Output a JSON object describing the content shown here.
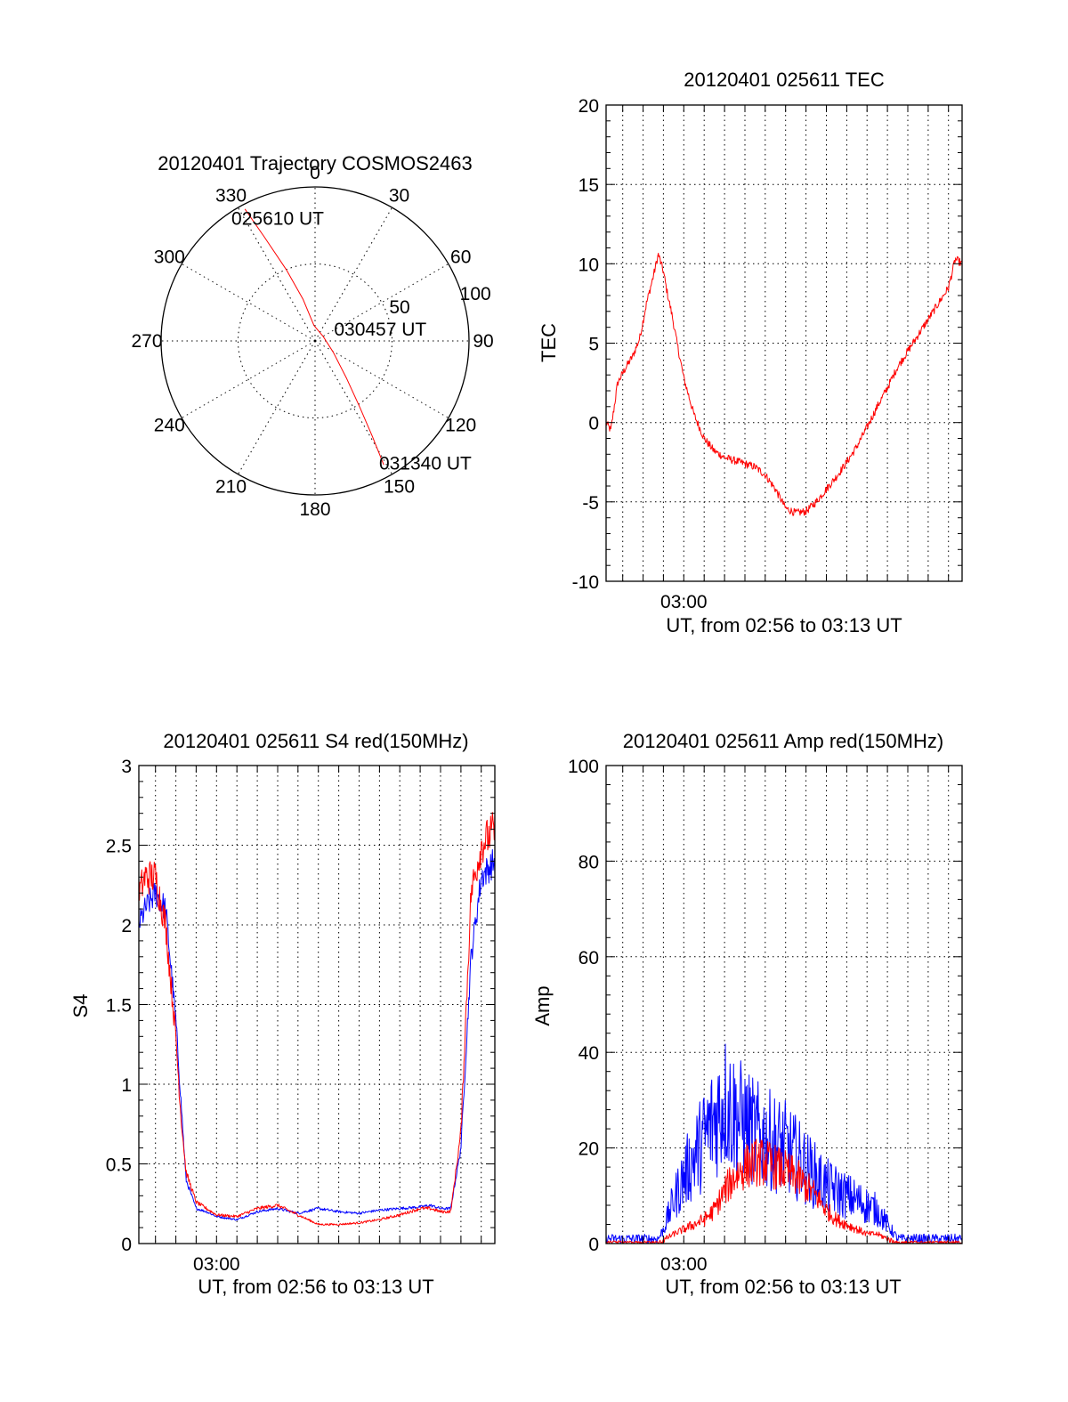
{
  "figure": {
    "background": "#ffffff"
  },
  "chart_data": [
    {
      "id": "polar",
      "type": "line",
      "coordinate_system": "polar",
      "title": "20120401 Trajectory COSMOS2463",
      "angle_labels": [
        "0",
        "30",
        "60",
        "90",
        "120",
        "150",
        "180",
        "210",
        "240",
        "270",
        "300",
        "330"
      ],
      "angle_values": [
        0,
        30,
        60,
        90,
        120,
        150,
        180,
        210,
        240,
        270,
        300,
        330
      ],
      "radius_labels": [
        "50",
        "100"
      ],
      "radius_values": [
        50,
        100
      ],
      "rlim": [
        0,
        100
      ],
      "grid": true,
      "series": [
        {
          "color": "#ff0000",
          "points": [
            {
              "az": 332,
              "r": 97
            },
            {
              "az": 334,
              "r": 75
            },
            {
              "az": 338,
              "r": 50
            },
            {
              "az": 344,
              "r": 28
            },
            {
              "az": 356,
              "r": 10
            },
            {
              "az": 60,
              "r": 6
            },
            {
              "az": 122,
              "r": 14
            },
            {
              "az": 140,
              "r": 32
            },
            {
              "az": 146,
              "r": 52
            },
            {
              "az": 149,
              "r": 72
            },
            {
              "az": 151,
              "r": 92
            }
          ]
        }
      ],
      "annotations": [
        {
          "text": "025610 UT",
          "az": 343,
          "r": 83
        },
        {
          "text": "030457 UT",
          "az": 80,
          "r": 43
        },
        {
          "text": "031340 UT",
          "az": 138,
          "r": 107
        }
      ]
    },
    {
      "id": "tec",
      "type": "line",
      "title": "20120401 025611 TEC",
      "xlabel": "UT, from 02:56 to 03:13 UT",
      "ylabel": "TEC",
      "xlim": [
        "02:56:11",
        "03:13:40"
      ],
      "ylim": [
        -10,
        20
      ],
      "yticks": [
        -10,
        -5,
        0,
        5,
        10,
        15,
        20
      ],
      "xtick_labels": [
        {
          "t": "03:00:00",
          "label": "03:00"
        }
      ],
      "grid": true,
      "series": [
        {
          "color": "#ff0000",
          "noise": 0.25,
          "x": [
            "02:56:11",
            "02:56:25",
            "02:56:45",
            "02:57:10",
            "02:57:30",
            "02:57:50",
            "02:58:10",
            "02:58:30",
            "02:58:45",
            "02:59:00",
            "02:59:10",
            "02:59:25",
            "02:59:40",
            "03:00:00",
            "03:00:30",
            "03:01:00",
            "03:01:30",
            "03:02:00",
            "03:02:30",
            "03:03:00",
            "03:03:30",
            "03:04:00",
            "03:04:30",
            "03:05:00",
            "03:05:30",
            "03:06:00",
            "03:06:30",
            "03:07:00",
            "03:07:30",
            "03:08:00",
            "03:08:30",
            "03:09:00",
            "03:09:30",
            "03:10:00",
            "03:10:30",
            "03:11:00",
            "03:11:30",
            "03:12:00",
            "03:12:30",
            "03:13:00",
            "03:13:20",
            "03:13:40"
          ],
          "y": [
            0,
            -0.5,
            2.5,
            3.5,
            4.2,
            5.3,
            7.5,
            9.2,
            10.6,
            9.5,
            8.3,
            6.8,
            5.0,
            2.8,
            0.5,
            -1.0,
            -1.8,
            -2.2,
            -2.4,
            -2.6,
            -2.8,
            -3.3,
            -4.2,
            -5.4,
            -5.7,
            -5.6,
            -5.0,
            -4.2,
            -3.4,
            -2.5,
            -1.5,
            -0.3,
            1.0,
            2.2,
            3.5,
            4.5,
            5.5,
            6.5,
            7.5,
            8.5,
            10.3,
            10.0
          ]
        }
      ]
    },
    {
      "id": "s4",
      "type": "line",
      "title": "20120401 025611 S4 red(150MHz)",
      "xlabel": "UT, from 02:56 to 03:13 UT",
      "ylabel": "S4",
      "xlim": [
        "02:56:11",
        "03:13:40"
      ],
      "ylim": [
        0,
        3
      ],
      "yticks": [
        0,
        0.5,
        1,
        1.5,
        2,
        2.5,
        3
      ],
      "ytick_labels": [
        "0",
        "0.5",
        "1",
        "1.5",
        "2",
        "2.5",
        "3"
      ],
      "xtick_labels": [
        {
          "t": "03:00:00",
          "label": "03:00"
        }
      ],
      "grid": true,
      "series": [
        {
          "color": "#0000ff",
          "noise": 0.04,
          "x": [
            "02:56:11",
            "02:56:30",
            "02:57:00",
            "02:57:30",
            "02:58:00",
            "02:58:15",
            "02:58:30",
            "02:59:00",
            "02:59:30",
            "03:00:00",
            "03:01:00",
            "03:02:00",
            "03:03:00",
            "03:04:00",
            "03:05:00",
            "03:06:00",
            "03:07:00",
            "03:08:00",
            "03:09:00",
            "03:10:00",
            "03:10:30",
            "03:11:00",
            "03:11:30",
            "03:12:00",
            "03:12:30",
            "03:13:00",
            "03:13:40"
          ],
          "y": [
            2.0,
            2.1,
            2.2,
            2.1,
            1.4,
            0.9,
            0.4,
            0.22,
            0.2,
            0.17,
            0.15,
            0.2,
            0.22,
            0.19,
            0.22,
            0.2,
            0.19,
            0.21,
            0.22,
            0.23,
            0.24,
            0.22,
            0.22,
            0.6,
            1.8,
            2.3,
            2.4
          ]
        },
        {
          "color": "#ff0000",
          "noise": 0.05,
          "x": [
            "02:56:11",
            "02:56:30",
            "02:57:00",
            "02:57:30",
            "02:58:00",
            "02:58:15",
            "02:58:30",
            "02:59:00",
            "02:59:30",
            "03:00:00",
            "03:01:00",
            "03:02:00",
            "03:03:00",
            "03:04:00",
            "03:05:00",
            "03:06:00",
            "03:07:00",
            "03:08:00",
            "03:09:00",
            "03:10:00",
            "03:10:30",
            "03:11:00",
            "03:11:30",
            "03:12:00",
            "03:12:30",
            "03:13:00",
            "03:13:40"
          ],
          "y": [
            2.2,
            2.3,
            2.3,
            2.0,
            1.3,
            0.8,
            0.45,
            0.26,
            0.22,
            0.18,
            0.17,
            0.22,
            0.24,
            0.18,
            0.12,
            0.12,
            0.13,
            0.15,
            0.18,
            0.22,
            0.22,
            0.2,
            0.2,
            0.7,
            2.2,
            2.5,
            2.6
          ]
        }
      ]
    },
    {
      "id": "amp",
      "type": "line",
      "title": "20120401 025611 Amp red(150MHz)",
      "xlabel": "UT, from 02:56 to 03:13 UT",
      "ylabel": "Amp",
      "xlim": [
        "02:56:11",
        "03:13:40"
      ],
      "ylim": [
        0,
        100
      ],
      "yticks": [
        0,
        20,
        40,
        60,
        80,
        100
      ],
      "xtick_labels": [
        {
          "t": "03:00:00",
          "label": "03:00"
        }
      ],
      "grid": true,
      "series": [
        {
          "color": "#0000ff",
          "noise": 0.5,
          "x": [
            "02:56:11",
            "02:57:00",
            "02:58:00",
            "02:58:45",
            "02:59:00",
            "02:59:30",
            "03:00:00",
            "03:00:30",
            "03:01:00",
            "03:01:30",
            "03:02:00",
            "03:02:30",
            "03:03:00",
            "03:03:30",
            "03:04:00",
            "03:04:30",
            "03:05:00",
            "03:05:30",
            "03:06:00",
            "03:06:30",
            "03:07:00",
            "03:07:30",
            "03:08:00",
            "03:08:30",
            "03:09:00",
            "03:09:30",
            "03:10:00",
            "03:10:30",
            "03:11:00",
            "03:12:00",
            "03:13:40"
          ],
          "y": [
            1,
            1,
            1,
            1,
            3,
            9,
            14,
            18,
            22,
            26,
            30,
            27,
            25,
            23,
            22,
            21,
            20,
            18,
            16,
            14,
            12,
            11,
            10,
            9,
            8,
            7,
            4,
            1,
            1,
            1,
            1
          ]
        },
        {
          "color": "#ff0000",
          "noise": 0.3,
          "x": [
            "02:56:11",
            "02:58:45",
            "02:59:30",
            "03:00:00",
            "03:00:30",
            "03:01:00",
            "03:01:30",
            "03:02:00",
            "03:02:30",
            "03:03:00",
            "03:03:30",
            "03:04:00",
            "03:04:30",
            "03:05:00",
            "03:05:30",
            "03:06:00",
            "03:06:30",
            "03:07:00",
            "03:07:30",
            "03:08:00",
            "03:08:30",
            "03:09:00",
            "03:09:30",
            "03:10:00",
            "03:10:30",
            "03:11:00",
            "03:13:40"
          ],
          "y": [
            0,
            0,
            2,
            3,
            4,
            5,
            7,
            11,
            14,
            16,
            17,
            17,
            16,
            15,
            14,
            12,
            10,
            7,
            5,
            4,
            3,
            2,
            2,
            1,
            0,
            0,
            0
          ]
        }
      ]
    }
  ]
}
